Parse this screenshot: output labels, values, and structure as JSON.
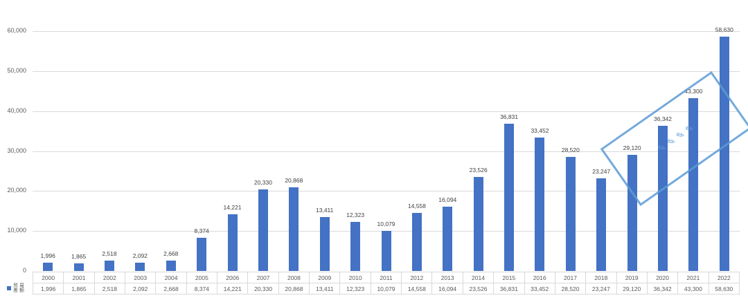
{
  "chart_data": {
    "type": "bar",
    "title": "",
    "xlabel": "",
    "ylabel": "",
    "ylim": [
      0,
      60000
    ],
    "yticks": [
      "0",
      "10,000",
      "20,000",
      "30,000",
      "40,000",
      "50,000",
      "60,000"
    ],
    "grid": true,
    "legend_position": "data-table-left",
    "categories": [
      "2000",
      "2001",
      "2002",
      "2003",
      "2004",
      "2005",
      "2006",
      "2007",
      "2008",
      "2009",
      "2010",
      "2011",
      "2012",
      "2013",
      "2014",
      "2015",
      "2016",
      "2017",
      "2018",
      "2019",
      "2020",
      "2021",
      "2022"
    ],
    "series": [
      {
        "name": "贸易差额",
        "color": "#4472c4",
        "values": [
          1996,
          1865,
          2518,
          2092,
          2668,
          8374,
          14221,
          20330,
          20868,
          13411,
          12323,
          10079,
          14558,
          16094,
          23526,
          36831,
          33452,
          28520,
          23247,
          29120,
          36342,
          43300,
          58630
        ],
        "labels": [
          "1,996",
          "1,865",
          "2,518",
          "2,092",
          "2,668",
          "8,374",
          "14,221",
          "20,330",
          "20,868",
          "13,411",
          "12,323",
          "10,079",
          "14,558",
          "16,094",
          "23,526",
          "36,831",
          "33,452",
          "28,520",
          "23,247",
          "29,120",
          "36,342",
          "43,300",
          "58,630"
        ]
      }
    ],
    "data_table": true,
    "watermark": "stamp"
  },
  "legend": {
    "line1": "贸 易",
    "line2": "差 额"
  }
}
